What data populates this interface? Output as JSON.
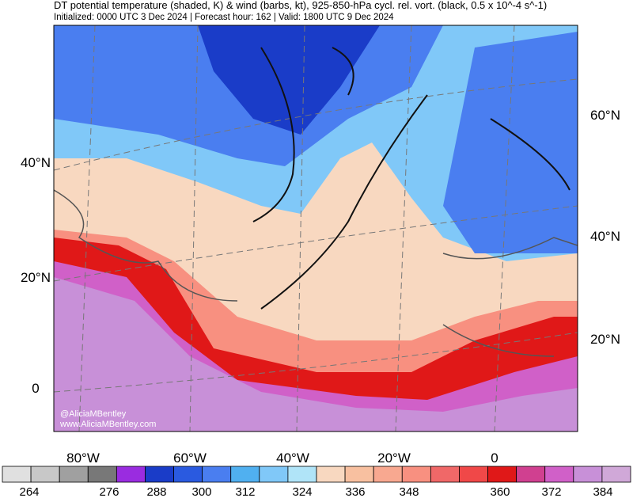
{
  "header": {
    "title": "DT potential temperature (shaded, K) & wind (barbs, kt), 925-850-hPa cycl. rel. vort. (black, 0.5 x 10^-4 s^-1)",
    "subtitle": "Initialized: 0000 UTC 3 Dec 2024 | Forecast hour: 162 | Valid: 1800 UTC 9 Dec 2024"
  },
  "map": {
    "left_labels": [
      "40°N",
      "20°N",
      "0"
    ],
    "right_labels": [
      "60°N",
      "40°N",
      "20°N"
    ],
    "bottom_labels": [
      "80°W",
      "60°W",
      "40°W",
      "20°W",
      "0"
    ],
    "credits": [
      "@AliciaMBentley",
      "www.AliciaMBentley.com"
    ]
  },
  "colorbar": {
    "colors": [
      "#e0e0e0",
      "#c8c8c8",
      "#a0a0a0",
      "#787878",
      "#9a2ce0",
      "#1a3cc8",
      "#2a5ae0",
      "#4a7ef0",
      "#50b0f0",
      "#80c8f8",
      "#b0e4f8",
      "#f8d8c0",
      "#f8c0a0",
      "#f8a890",
      "#f89080",
      "#f06868",
      "#f04848",
      "#e01818",
      "#d04090",
      "#d060c8",
      "#c890d8",
      "#d0a8d8"
    ],
    "labels": [
      "264",
      "276",
      "288",
      "300",
      "312",
      "324",
      "336",
      "348",
      "360",
      "372",
      "384"
    ]
  }
}
